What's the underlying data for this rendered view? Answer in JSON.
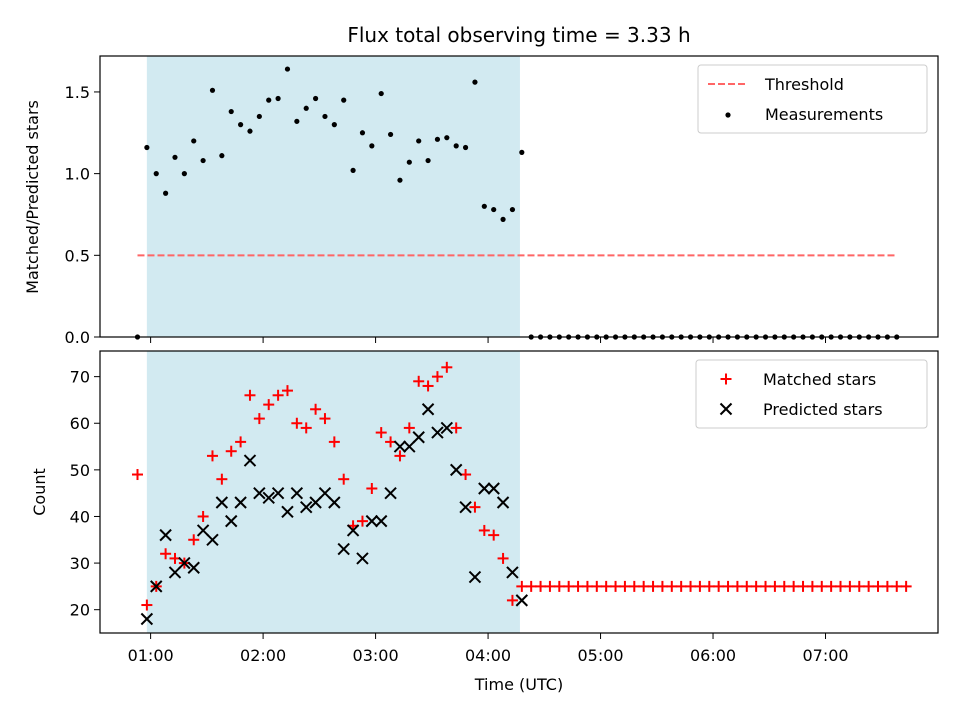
{
  "chart_data": {
    "title": "Flux total observing time = 3.33 h",
    "xlabel": "Time (UTC)",
    "x_unit": "hours UTC",
    "xlim": [
      "00:33",
      "08:00"
    ],
    "xticks": [
      "01:00",
      "02:00",
      "03:00",
      "04:00",
      "05:00",
      "06:00",
      "07:00"
    ],
    "observing_span": {
      "start": "00:58",
      "end": "04:17",
      "color": "#add8e6"
    },
    "panels": [
      {
        "type": "scatter",
        "ylabel": "Matched/Predicted stars",
        "ylim": [
          0,
          1.72
        ],
        "yticks": [
          "0.0",
          "0.5",
          "1.0",
          "1.5"
        ],
        "legend": "top-right",
        "threshold": {
          "name": "Threshold",
          "value": 0.5,
          "x_range": [
            "00:53",
            "07:38"
          ],
          "color": "#ff6666",
          "style": "dashed"
        },
        "series": [
          {
            "name": "Measurements",
            "marker": "dot",
            "color": "#000000",
            "x": [
              "00:53",
              "00:58",
              "01:03",
              "01:08",
              "01:13",
              "01:18",
              "01:23",
              "01:28",
              "01:33",
              "01:38",
              "01:43",
              "01:48",
              "01:53",
              "01:58",
              "02:03",
              "02:08",
              "02:13",
              "02:18",
              "02:23",
              "02:28",
              "02:33",
              "02:38",
              "02:43",
              "02:48",
              "02:53",
              "02:58",
              "03:03",
              "03:08",
              "03:13",
              "03:18",
              "03:23",
              "03:28",
              "03:33",
              "03:38",
              "03:43",
              "03:48",
              "03:53",
              "03:58",
              "04:03",
              "04:08",
              "04:13",
              "04:18",
              "04:23",
              "04:28",
              "04:33",
              "04:38",
              "04:43",
              "04:48",
              "04:53",
              "04:58",
              "05:03",
              "05:08",
              "05:13",
              "05:18",
              "05:23",
              "05:28",
              "05:33",
              "05:38",
              "05:43",
              "05:48",
              "05:53",
              "05:58",
              "06:03",
              "06:08",
              "06:13",
              "06:18",
              "06:23",
              "06:28",
              "06:33",
              "06:38",
              "06:43",
              "06:48",
              "06:53",
              "06:58",
              "07:03",
              "07:08",
              "07:13",
              "07:18",
              "07:23",
              "07:28",
              "07:33",
              "07:38"
            ],
            "y": [
              0.0,
              1.16,
              1.0,
              0.88,
              1.1,
              1.0,
              1.2,
              1.08,
              1.51,
              1.11,
              1.38,
              1.3,
              1.26,
              1.35,
              1.45,
              1.46,
              1.64,
              1.32,
              1.4,
              1.46,
              1.35,
              1.3,
              1.45,
              1.02,
              1.25,
              1.17,
              1.49,
              1.24,
              0.96,
              1.07,
              1.2,
              1.08,
              1.21,
              1.22,
              1.17,
              1.16,
              1.56,
              0.8,
              0.78,
              0.72,
              0.78,
              1.13,
              0.0,
              0.0,
              0.0,
              0.0,
              0.0,
              0.0,
              0.0,
              0.0,
              0.0,
              0.0,
              0.0,
              0.0,
              0.0,
              0.0,
              0.0,
              0.0,
              0.0,
              0.0,
              0.0,
              0.0,
              0.0,
              0.0,
              0.0,
              0.0,
              0.0,
              0.0,
              0.0,
              0.0,
              0.0,
              0.0,
              0.0,
              0.0,
              0.0,
              0.0,
              0.0,
              0.0,
              0.0,
              0.0,
              0.0,
              0.0
            ]
          }
        ]
      },
      {
        "type": "scatter",
        "ylabel": "Count",
        "ylim": [
          15,
          75.5
        ],
        "yticks": [
          "20",
          "30",
          "40",
          "50",
          "60",
          "70"
        ],
        "legend": "top-right",
        "series": [
          {
            "name": "Matched stars",
            "marker": "plus",
            "color": "#ff0000",
            "x": [
              "00:53",
              "00:58",
              "01:03",
              "01:08",
              "01:13",
              "01:18",
              "01:23",
              "01:28",
              "01:33",
              "01:38",
              "01:43",
              "01:48",
              "01:53",
              "01:58",
              "02:03",
              "02:08",
              "02:13",
              "02:18",
              "02:23",
              "02:28",
              "02:33",
              "02:38",
              "02:43",
              "02:48",
              "02:53",
              "02:58",
              "03:03",
              "03:08",
              "03:13",
              "03:18",
              "03:23",
              "03:28",
              "03:33",
              "03:38",
              "03:43",
              "03:48",
              "03:53",
              "03:58",
              "04:03",
              "04:08",
              "04:13",
              "04:18",
              "04:23",
              "04:28",
              "04:33",
              "04:38",
              "04:43",
              "04:48",
              "04:53",
              "04:58",
              "05:03",
              "05:08",
              "05:13",
              "05:18",
              "05:23",
              "05:28",
              "05:33",
              "05:38",
              "05:43",
              "05:48",
              "05:53",
              "05:58",
              "06:03",
              "06:08",
              "06:13",
              "06:18",
              "06:23",
              "06:28",
              "06:33",
              "06:38",
              "06:43",
              "06:48",
              "06:53",
              "06:58",
              "07:03",
              "07:08",
              "07:13",
              "07:18",
              "07:23",
              "07:28",
              "07:33",
              "07:38",
              "07:43"
            ],
            "y": [
              49,
              21,
              25,
              32,
              31,
              30,
              35,
              40,
              53,
              48,
              54,
              56,
              66,
              61,
              64,
              66,
              67,
              60,
              59,
              63,
              61,
              56,
              48,
              38,
              39,
              46,
              58,
              56,
              53,
              59,
              69,
              68,
              70,
              72,
              59,
              49,
              42,
              37,
              36,
              31,
              22,
              25,
              25,
              25,
              25,
              25,
              25,
              25,
              25,
              25,
              25,
              25,
              25,
              25,
              25,
              25,
              25,
              25,
              25,
              25,
              25,
              25,
              25,
              25,
              25,
              25,
              25,
              25,
              25,
              25,
              25,
              25,
              25,
              25,
              25,
              25,
              25,
              25,
              25,
              25,
              25,
              25,
              25
            ]
          },
          {
            "name": "Predicted stars",
            "marker": "x",
            "color": "#000000",
            "x": [
              "00:58",
              "01:03",
              "01:08",
              "01:13",
              "01:18",
              "01:23",
              "01:28",
              "01:33",
              "01:38",
              "01:43",
              "01:48",
              "01:53",
              "01:58",
              "02:03",
              "02:08",
              "02:13",
              "02:18",
              "02:23",
              "02:28",
              "02:33",
              "02:38",
              "02:43",
              "02:48",
              "02:53",
              "02:58",
              "03:03",
              "03:08",
              "03:13",
              "03:18",
              "03:23",
              "03:28",
              "03:33",
              "03:38",
              "03:43",
              "03:48",
              "03:53",
              "03:58",
              "04:03",
              "04:08",
              "04:13",
              "04:18"
            ],
            "y": [
              18,
              25,
              36,
              28,
              30,
              29,
              37,
              35,
              43,
              39,
              43,
              52,
              45,
              44,
              45,
              41,
              45,
              42,
              43,
              45,
              43,
              33,
              37,
              31,
              39,
              39,
              45,
              55,
              55,
              57,
              63,
              58,
              59,
              50,
              42,
              27,
              46,
              46,
              43,
              28,
              22
            ]
          }
        ]
      }
    ]
  }
}
